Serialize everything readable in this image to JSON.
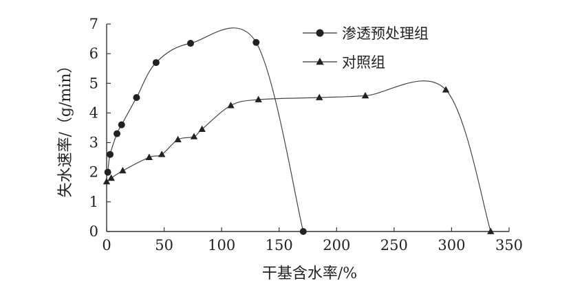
{
  "chart_data": {
    "type": "line",
    "title": "",
    "xlabel": "干基含水率/%",
    "ylabel": "失水速率/（g/min）",
    "xlim": [
      0,
      350
    ],
    "ylim": [
      0,
      7
    ],
    "xticks": [
      "0",
      "50",
      "100",
      "150",
      "200",
      "250",
      "300",
      "350"
    ],
    "yticks": [
      "0",
      "1",
      "2",
      "3",
      "4",
      "5",
      "6",
      "7"
    ],
    "grid": false,
    "legend_position": "top-right",
    "series": [
      {
        "name": "渗透预处理组",
        "marker": "circle",
        "x": [
          171,
          130,
          73,
          43,
          26,
          13,
          9,
          3,
          1
        ],
        "y": [
          0,
          6.38,
          6.35,
          5.7,
          4.52,
          3.6,
          3.3,
          2.6,
          2.0
        ]
      },
      {
        "name": "对照组",
        "marker": "triangle",
        "x": [
          334,
          295,
          225,
          185,
          132,
          108,
          83,
          76,
          62,
          48,
          37,
          14,
          4,
          0
        ],
        "y": [
          0,
          4.78,
          4.58,
          4.52,
          4.45,
          4.25,
          3.45,
          3.2,
          3.1,
          2.6,
          2.5,
          2.05,
          1.8,
          1.68
        ]
      }
    ]
  }
}
